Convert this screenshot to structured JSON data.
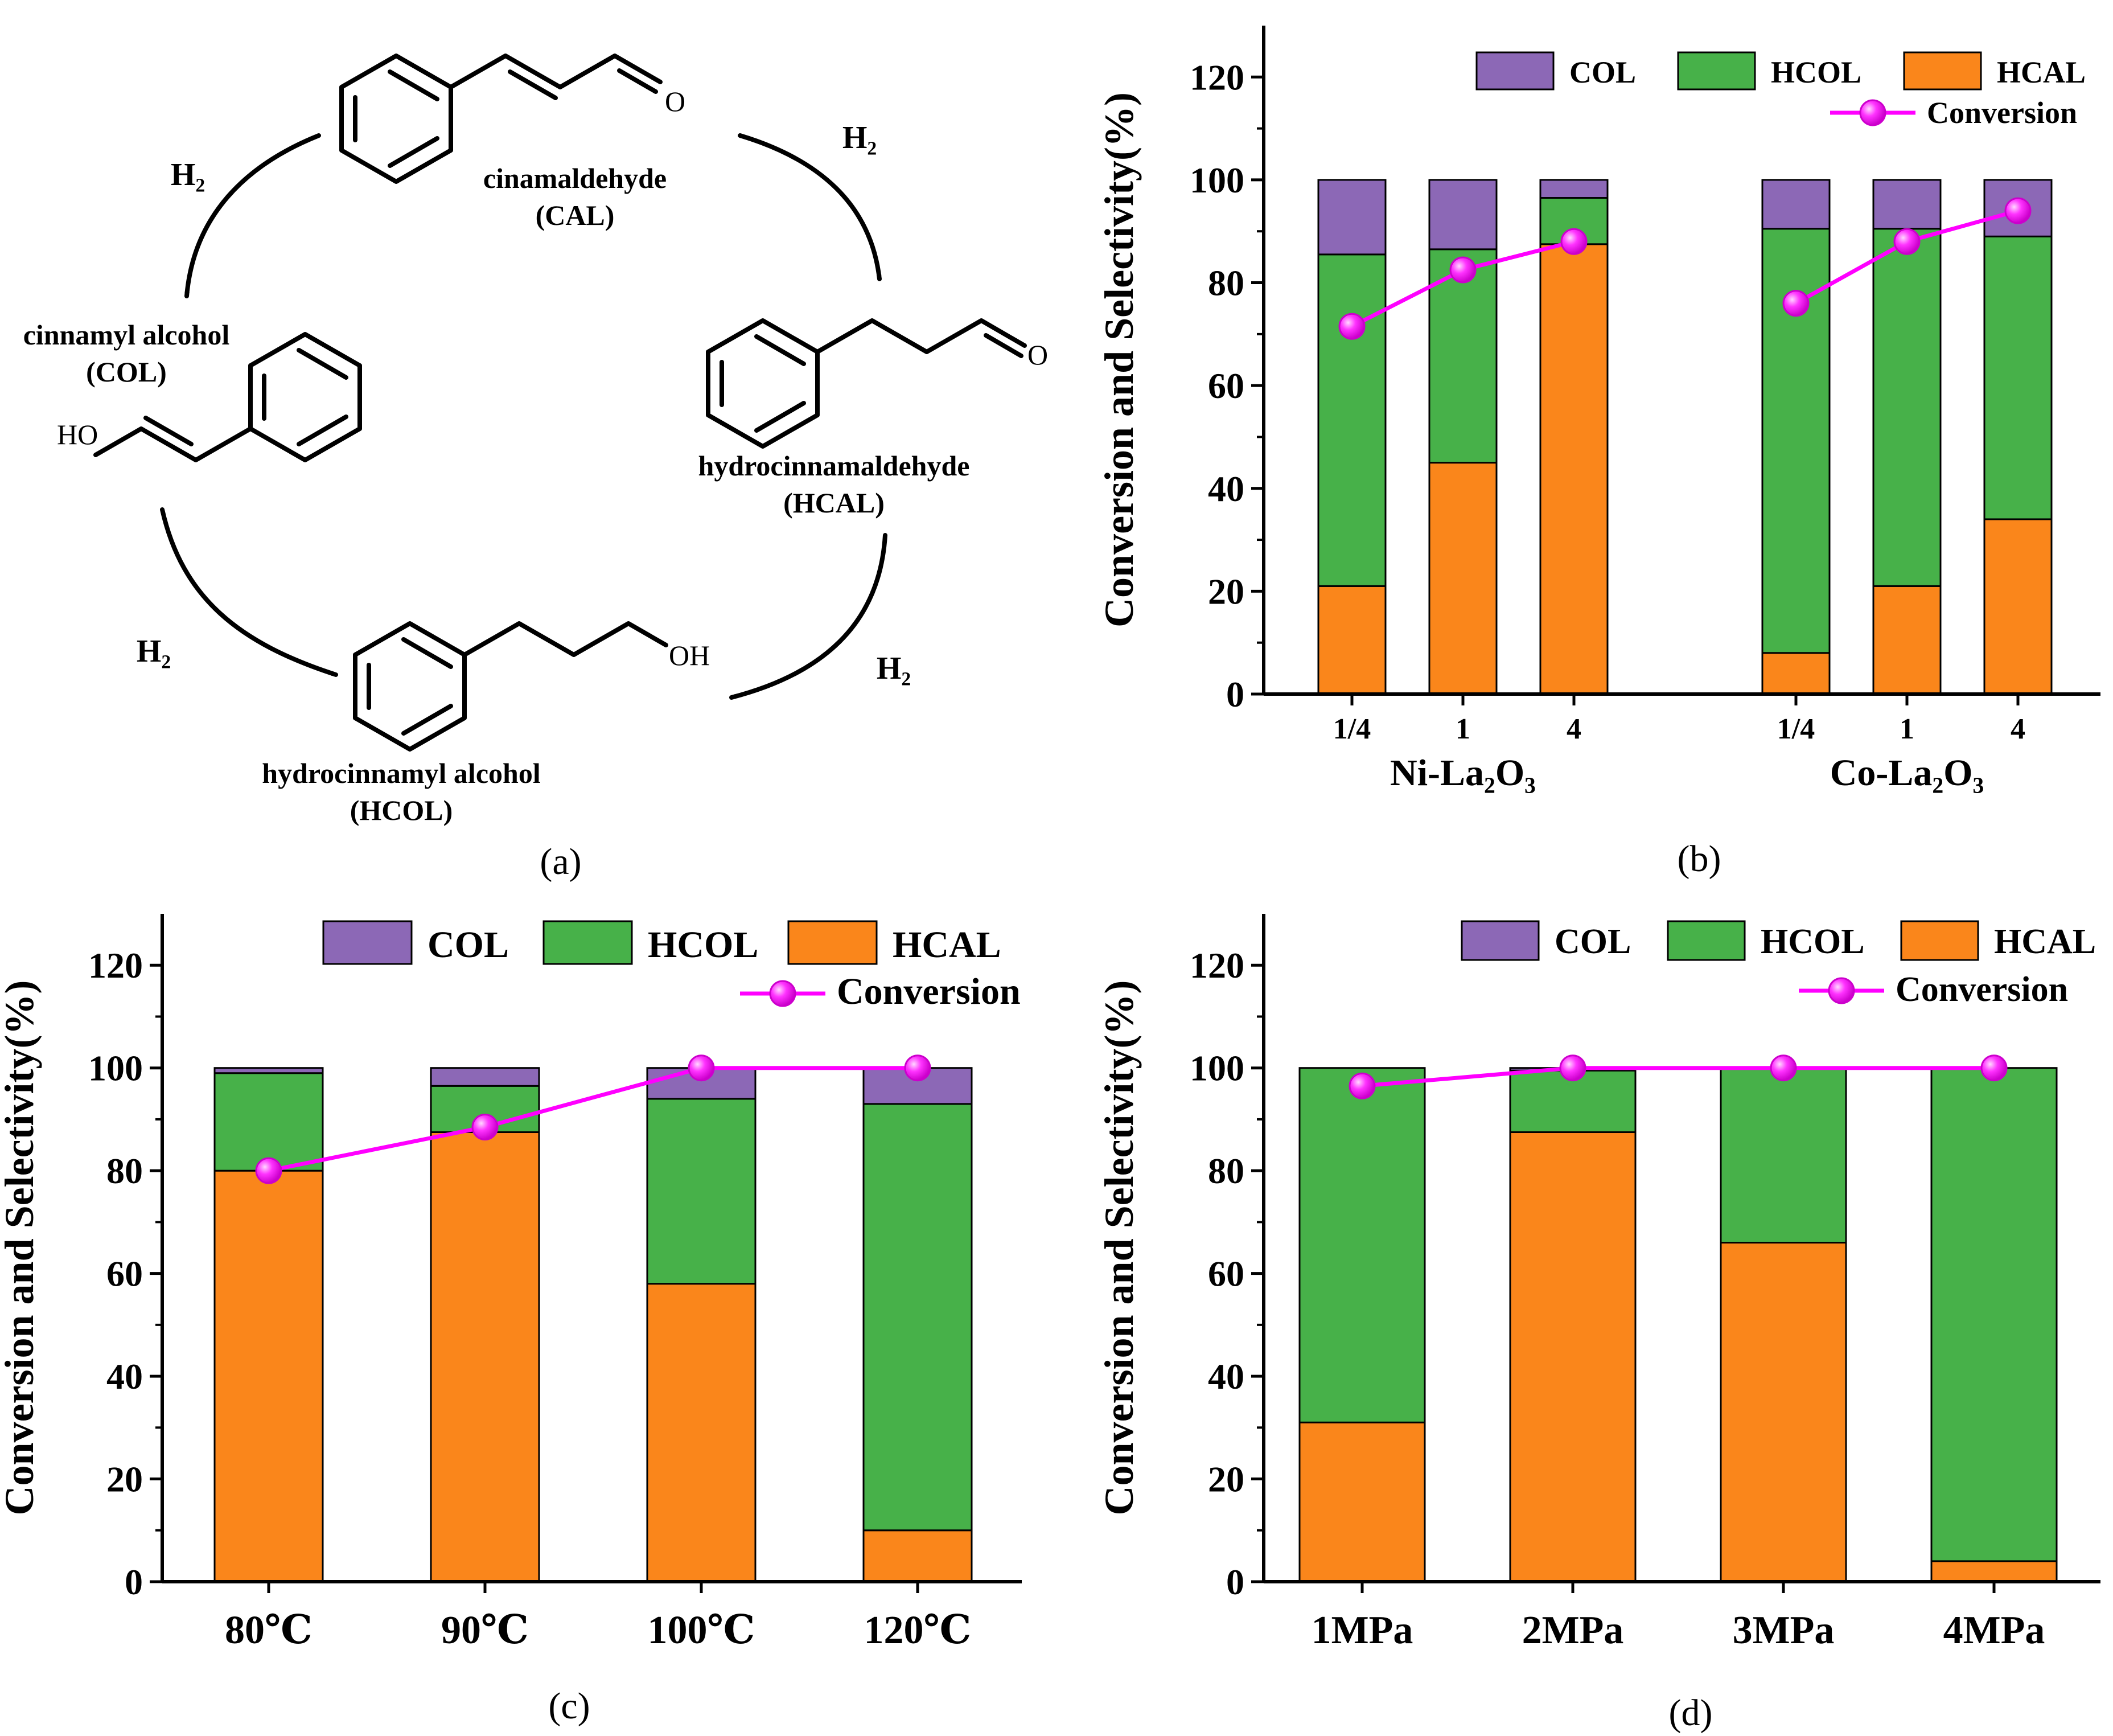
{
  "colors": {
    "col": "#8c68b6",
    "hcol": "#47b149",
    "hcal": "#fa861b",
    "conversion": "#ff00ff",
    "axis": "#000000"
  },
  "scheme": {
    "panel_label": "(a)",
    "h2": "H₂",
    "cal": {
      "name": "cinamaldehyde",
      "abbr": "(CAL)"
    },
    "col": {
      "name": "cinnamyl alcohol",
      "abbr": "(COL)"
    },
    "hcal": {
      "name": "hydrocinnamaldehyde",
      "abbr": "(HCAL)"
    },
    "hcol": {
      "name": "hydrocinnamyl alcohol",
      "abbr": "(HCOL)"
    },
    "atoms": {
      "o": "O",
      "ho": "HO",
      "oh": "OH"
    }
  },
  "chart_data": [
    {
      "panel": "(b)",
      "type": "bar",
      "stacked": true,
      "ylabel": "Conversion and Selectivity(%)",
      "ylim": [
        0,
        130
      ],
      "yticks": [
        0,
        20,
        40,
        60,
        80,
        100,
        120
      ],
      "categories": [
        "1/4",
        "1",
        "4",
        "1/4",
        "1",
        "4"
      ],
      "groups": [
        {
          "label": "Ni-La₂O₃"
        },
        {
          "label": "Co-La₂O₃"
        }
      ],
      "legend": {
        "col": "COL",
        "hcol": "HCOL",
        "hcal": "HCAL",
        "conversion": "Conversion"
      },
      "series": [
        {
          "name": "HCAL",
          "values": [
            21,
            45,
            87.5,
            8,
            21,
            34
          ]
        },
        {
          "name": "HCOL",
          "values": [
            64.5,
            41.5,
            9,
            82.5,
            69.5,
            55
          ]
        },
        {
          "name": "COL",
          "values": [
            14.5,
            13.5,
            3.5,
            9.5,
            9.5,
            11
          ]
        }
      ],
      "conversion": [
        71.5,
        82.5,
        88,
        76,
        88,
        94
      ]
    },
    {
      "panel": "(c)",
      "type": "bar",
      "stacked": true,
      "ylabel": "Conversion and Selectivity(%)",
      "ylim": [
        0,
        130
      ],
      "yticks": [
        0,
        20,
        40,
        60,
        80,
        100,
        120
      ],
      "categories": [
        "80℃",
        "90℃",
        "100℃",
        "120℃"
      ],
      "legend": {
        "col": "COL",
        "hcol": "HCOL",
        "hcal": "HCAL",
        "conversion": "Conversion"
      },
      "series": [
        {
          "name": "HCAL",
          "values": [
            80,
            87.5,
            58,
            10
          ]
        },
        {
          "name": "HCOL",
          "values": [
            19,
            9,
            36,
            83
          ]
        },
        {
          "name": "COL",
          "values": [
            1,
            3.5,
            6,
            7
          ]
        }
      ],
      "conversion": [
        80,
        88.5,
        100,
        100
      ]
    },
    {
      "panel": "(d)",
      "type": "bar",
      "stacked": true,
      "ylabel": "Conversion and Selectivity(%)",
      "ylim": [
        0,
        130
      ],
      "yticks": [
        0,
        20,
        40,
        60,
        80,
        100,
        120
      ],
      "categories": [
        "1MPa",
        "2MPa",
        "3MPa",
        "4MPa"
      ],
      "legend": {
        "col": "COL",
        "hcol": "HCOL",
        "hcal": "HCAL",
        "conversion": "Conversion"
      },
      "series": [
        {
          "name": "HCAL",
          "values": [
            31,
            87.5,
            66,
            4
          ]
        },
        {
          "name": "HCOL",
          "values": [
            69,
            12,
            34,
            96
          ]
        },
        {
          "name": "COL",
          "values": [
            0,
            0.5,
            0,
            0
          ]
        }
      ],
      "conversion": [
        96.5,
        100,
        100,
        100
      ]
    }
  ]
}
